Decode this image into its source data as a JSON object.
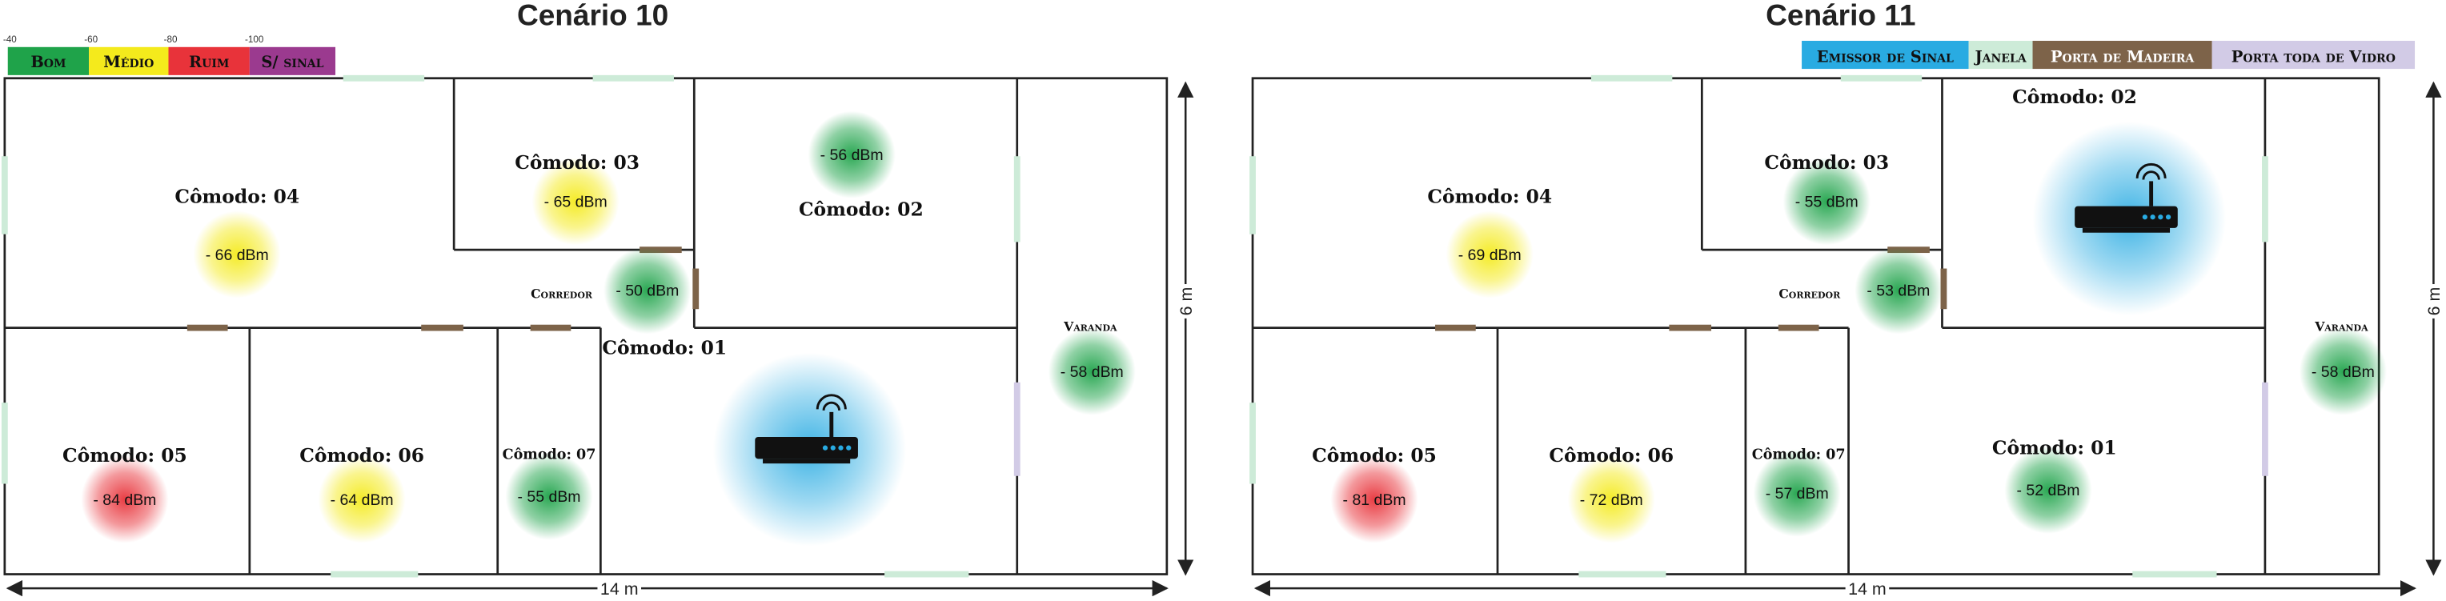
{
  "signal_legend": [
    {
      "threshold": "-40",
      "label": "Bom",
      "color": "#1fa34a"
    },
    {
      "threshold": "-60",
      "label": "Médio",
      "color": "#f4ea1c"
    },
    {
      "threshold": "-80",
      "label": "Ruim",
      "color": "#e8333a"
    },
    {
      "threshold": "-100",
      "label": "S/ sinal",
      "color": "#9b3a8f"
    }
  ],
  "element_legend": [
    {
      "label": "Emissor de Sinal",
      "color": "#29abe2"
    },
    {
      "label": "Janela",
      "color": "#cdebd8"
    },
    {
      "label": "Porta de Madeira",
      "color": "#7d6349"
    },
    {
      "label": "Porta toda de Vidro",
      "color": "#d2cbe6"
    }
  ],
  "scenarios": [
    {
      "title": "Cenário 10",
      "width_label": "14 m",
      "height_label": "6 m",
      "rooms": [
        {
          "name": "Cômodo: 04",
          "reading": "- 66 dBm",
          "color": "#f4ea1c"
        },
        {
          "name": "Cômodo: 03",
          "reading": "- 65 dBm",
          "color": "#f4ea1c"
        },
        {
          "name": "Cômodo: 02",
          "reading": "- 56 dBm",
          "color": "#1fa34a"
        },
        {
          "name": "Corredor",
          "reading": "- 50 dBm",
          "color": "#1fa34a"
        },
        {
          "name": "Cômodo: 01"
        },
        {
          "name": "Varanda",
          "reading": "- 58 dBm",
          "color": "#1fa34a"
        },
        {
          "name": "Cômodo: 05",
          "reading": "- 84 dBm",
          "color": "#e8333a"
        },
        {
          "name": "Cômodo: 06",
          "reading": "- 64 dBm",
          "color": "#f4ea1c"
        },
        {
          "name": "Cômodo: 07",
          "reading": "- 55 dBm",
          "color": "#1fa34a"
        }
      ]
    },
    {
      "title": "Cenário 11",
      "width_label": "14 m",
      "height_label": "6 m",
      "rooms": [
        {
          "name": "Cômodo: 04",
          "reading": "- 69 dBm",
          "color": "#f4ea1c"
        },
        {
          "name": "Cômodo: 03",
          "reading": "- 55 dBm",
          "color": "#1fa34a"
        },
        {
          "name": "Cômodo: 02"
        },
        {
          "name": "Corredor",
          "reading": "- 53 dBm",
          "color": "#1fa34a"
        },
        {
          "name": "Cômodo: 01",
          "reading": "- 52 dBm",
          "color": "#1fa34a"
        },
        {
          "name": "Varanda",
          "reading": "- 58 dBm",
          "color": "#1fa34a"
        },
        {
          "name": "Cômodo: 05",
          "reading": "- 81 dBm",
          "color": "#e8333a"
        },
        {
          "name": "Cômodo: 06",
          "reading": "- 72 dBm",
          "color": "#f4ea1c"
        },
        {
          "name": "Cômodo: 07",
          "reading": "- 57 dBm",
          "color": "#1fa34a"
        }
      ]
    }
  ]
}
